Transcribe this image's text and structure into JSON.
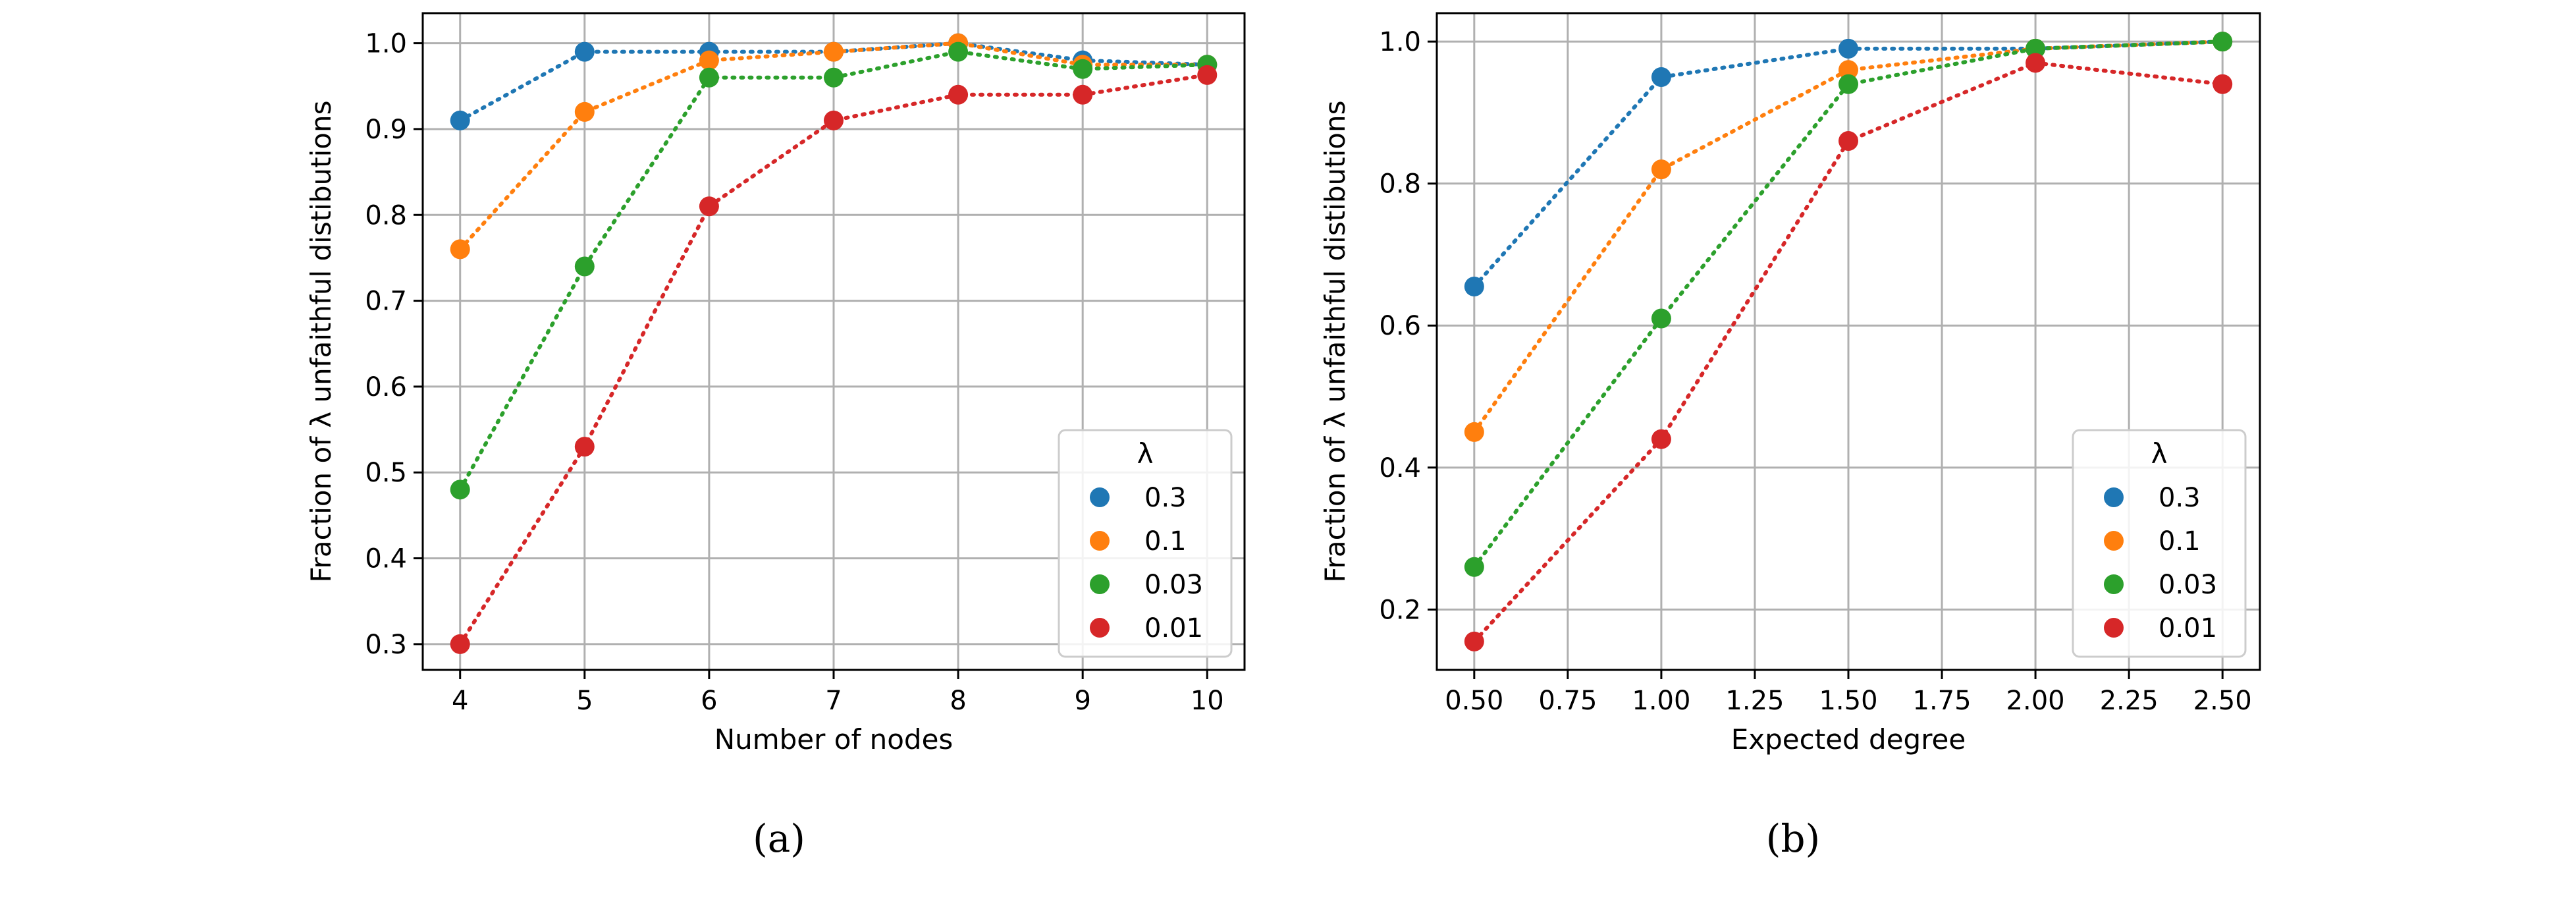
{
  "chart_data": [
    {
      "type": "line",
      "caption": "(a)",
      "xlabel": "Number of nodes",
      "ylabel": "Fraction of λ unfaithful distibutions",
      "x": [
        4,
        5,
        6,
        7,
        8,
        9,
        10
      ],
      "xlim": [
        3.7,
        10.3
      ],
      "ylim": [
        0.27,
        1.035
      ],
      "xticks": [
        4,
        5,
        6,
        7,
        8,
        9,
        10
      ],
      "xtick_labels": [
        "4",
        "5",
        "6",
        "7",
        "8",
        "9",
        "10"
      ],
      "yticks": [
        0.3,
        0.4,
        0.5,
        0.6,
        0.7,
        0.8,
        0.9,
        1.0
      ],
      "ytick_labels": [
        "0.3",
        "0.4",
        "0.5",
        "0.6",
        "0.7",
        "0.8",
        "0.9",
        "1.0"
      ],
      "grid": true,
      "legend": {
        "title": "λ",
        "placement": "lower-right"
      },
      "series": [
        {
          "name": "0.3",
          "color": "#1f77b4",
          "values": [
            0.91,
            0.99,
            0.99,
            0.99,
            1.0,
            0.98,
            0.975
          ]
        },
        {
          "name": "0.1",
          "color": "#ff7f0e",
          "values": [
            0.76,
            0.92,
            0.98,
            0.99,
            1.0,
            0.975,
            0.975
          ]
        },
        {
          "name": "0.03",
          "color": "#2ca02c",
          "values": [
            0.48,
            0.74,
            0.96,
            0.96,
            0.99,
            0.97,
            0.975
          ]
        },
        {
          "name": "0.01",
          "color": "#d62728",
          "values": [
            0.3,
            0.53,
            0.81,
            0.91,
            0.94,
            0.94,
            0.963
          ]
        }
      ]
    },
    {
      "type": "line",
      "caption": "(b)",
      "xlabel": "Expected degree",
      "ylabel": "Fraction of λ unfaithful distibutions",
      "x": [
        0.5,
        1.0,
        1.5,
        2.0,
        2.5
      ],
      "xlim": [
        0.4,
        2.6
      ],
      "ylim": [
        0.115,
        1.04
      ],
      "xticks": [
        0.5,
        0.75,
        1.0,
        1.25,
        1.5,
        1.75,
        2.0,
        2.25,
        2.5
      ],
      "xtick_labels": [
        "0.50",
        "0.75",
        "1.00",
        "1.25",
        "1.50",
        "1.75",
        "2.00",
        "2.25",
        "2.50"
      ],
      "yticks": [
        0.2,
        0.4,
        0.6,
        0.8,
        1.0
      ],
      "ytick_labels": [
        "0.2",
        "0.4",
        "0.6",
        "0.8",
        "1.0"
      ],
      "grid": true,
      "legend": {
        "title": "λ",
        "placement": "lower-right"
      },
      "series": [
        {
          "name": "0.3",
          "color": "#1f77b4",
          "values": [
            0.655,
            0.95,
            0.99,
            0.99,
            1.0
          ]
        },
        {
          "name": "0.1",
          "color": "#ff7f0e",
          "values": [
            0.45,
            0.82,
            0.96,
            0.99,
            1.0
          ]
        },
        {
          "name": "0.03",
          "color": "#2ca02c",
          "values": [
            0.26,
            0.61,
            0.94,
            0.99,
            1.0
          ]
        },
        {
          "name": "0.01",
          "color": "#d62728",
          "values": [
            0.155,
            0.44,
            0.86,
            0.97,
            0.94
          ]
        }
      ]
    }
  ]
}
